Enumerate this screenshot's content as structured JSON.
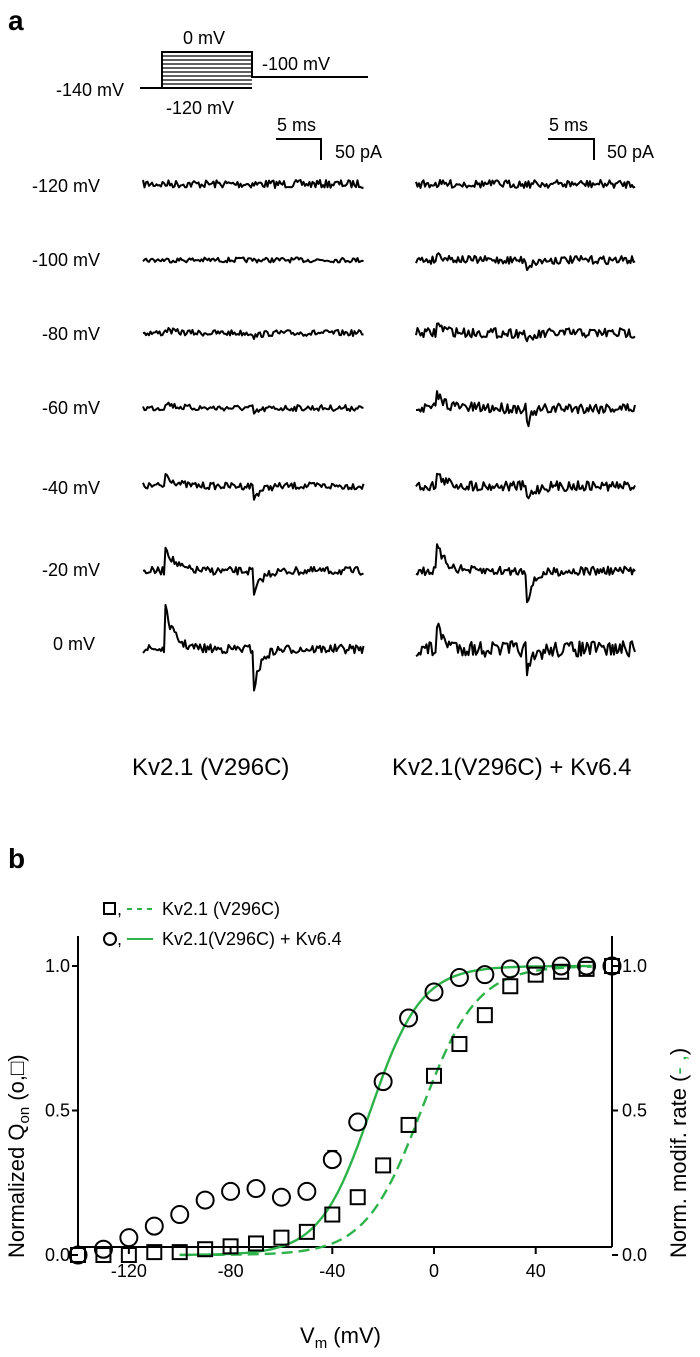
{
  "panel_a": {
    "label": "a",
    "protocol": {
      "hold_label": "-140 mV",
      "top_label": "0 mV",
      "bottom_label": "-120 mV",
      "post_label": "-100 mV"
    },
    "scale_bars": [
      {
        "time": "5 ms",
        "current": "50 pA"
      },
      {
        "time": "5 ms",
        "current": "50 pA"
      }
    ],
    "voltages": [
      "-120 mV",
      "-100 mV",
      "-80 mV",
      "-60 mV",
      "-40 mV",
      "-20 mV",
      "0 mV"
    ],
    "conditions": [
      "Kv2.1 (V296C)",
      "Kv2.1(V296C) + Kv6.4"
    ]
  },
  "panel_b": {
    "label": "b"
  },
  "chart_data": {
    "type": "scatter",
    "title": "",
    "xlabel": "V",
    "xlabel_sub": "m",
    "xlabel_unit": " (mV)",
    "ylabel_left": "Normalized Q",
    "ylabel_left_sub": "on",
    "ylabel_left_suffix": " (o,□)",
    "ylabel_right": "Norm. modif. rate (",
    "ylabel_right_suffix": ")",
    "xlim": [
      -140,
      70
    ],
    "ylim": [
      0,
      1.0
    ],
    "xticks": [
      "-120",
      "-80",
      "-40",
      "0",
      "40"
    ],
    "xtick_values": [
      -120,
      -80,
      -40,
      0,
      40
    ],
    "yticks_left": [
      "0.0",
      "0.5",
      "1.0"
    ],
    "yticks_right": [
      "0.0",
      "0.5",
      "1.0"
    ],
    "ytick_values": [
      0,
      0.5,
      1.0
    ],
    "legend_position": "top-left",
    "series": [
      {
        "name": "Kv2.1 (V296C)",
        "marker": "square",
        "x": [
          -140,
          -130,
          -120,
          -110,
          -100,
          -90,
          -80,
          -70,
          -60,
          -50,
          -40,
          -30,
          -20,
          -10,
          0,
          10,
          20,
          30,
          40,
          50,
          60,
          70
        ],
        "y": [
          0.0,
          0.0,
          0.0,
          0.01,
          0.01,
          0.02,
          0.03,
          0.04,
          0.06,
          0.08,
          0.14,
          0.2,
          0.31,
          0.45,
          0.62,
          0.73,
          0.83,
          0.93,
          0.97,
          0.98,
          0.99,
          1.0
        ],
        "fit_style": "short-dash",
        "fit_v_half": -5,
        "fit_slope": 11
      },
      {
        "name": "Kv2.1(V296C) + Kv6.4",
        "marker": "circle",
        "x": [
          -140,
          -130,
          -120,
          -110,
          -100,
          -90,
          -80,
          -70,
          -60,
          -50,
          -40,
          -30,
          -20,
          -10,
          0,
          10,
          20,
          30,
          40,
          50,
          60,
          70
        ],
        "y": [
          0.0,
          0.02,
          0.06,
          0.1,
          0.14,
          0.19,
          0.22,
          0.23,
          0.2,
          0.22,
          0.33,
          0.46,
          0.6,
          0.82,
          0.91,
          0.96,
          0.97,
          0.99,
          1.0,
          1.0,
          1.0,
          1.0
        ],
        "error_at_x": -40,
        "error_hi": 0.36,
        "fit_style": "solid",
        "fit_v_half": -25,
        "fit_slope": 10
      }
    ],
    "colors": {
      "fit": "#2db34a",
      "marker": "#000000"
    }
  }
}
